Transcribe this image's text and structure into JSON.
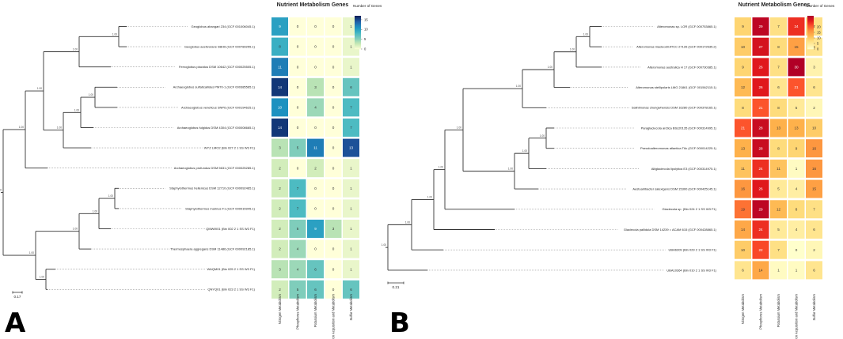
{
  "figure": {
    "heatmap_title": "Nutrient Metabolism Genes",
    "legend_title": "Number of Genes",
    "columns": [
      "Nitrogen Metabolism",
      "Phosphorus Metabolism",
      "Potassium Metabolism",
      "Iron Acquisition and Metabolism",
      "Sulfur Metabolism"
    ]
  },
  "chart_data": [
    {
      "type": "heatmap",
      "panel": "A",
      "title": "Nutrient Metabolism Genes",
      "legend_title": "Number of Genes",
      "legend_ticks": [
        0,
        5,
        10,
        15
      ],
      "color_scale": [
        "#ffffd9",
        "#c7e9b4",
        "#7fcdbb",
        "#41b6c4",
        "#1d91c0",
        "#225ea8",
        "#081d58"
      ],
      "vmax": 15,
      "scale_bar_label": "0.17",
      "columns": [
        "Nitrogen Metabolism",
        "Phosphorus Metabolism",
        "Potassium Metabolism",
        "Iron Acquisition and Metabolism",
        "Sulfur Metabolism"
      ],
      "rows": [
        {
          "label": "Geoglobus ahangari 234 (GCF 001006045.1)",
          "values": [
            9,
            0,
            0,
            0,
            1
          ]
        },
        {
          "label": "Geoglobus acetivorans SBH6 (GCF 000789255.1)",
          "values": [
            8,
            0,
            0,
            0,
            1
          ]
        },
        {
          "label": "Ferroglobus placidus DSM 10642 (GCF 000025505.1)",
          "values": [
            11,
            0,
            0,
            0,
            1
          ]
        },
        {
          "label": "Archaeoglobus sulfaticallidus PM70-1 (GCF 000385565.1)",
          "values": [
            14,
            0,
            3,
            0,
            6
          ]
        },
        {
          "label": "Archaeoglobus veneficus SNP6 (GCF 000194625.1)",
          "values": [
            10,
            0,
            4,
            0,
            7
          ]
        },
        {
          "label": "Archaeoglobus fulgidus DSM 4304 (GCF 000008665.1)",
          "values": [
            14,
            0,
            0,
            0,
            7
          ]
        },
        {
          "label": "WYZ LMO2 (Bin 027 2 1 SS W3 F1)",
          "values": [
            3,
            5,
            11,
            0,
            13
          ]
        },
        {
          "label": "Archaeoglobus profundus DSM 5631 (GCF 000025285.1)",
          "values": [
            2,
            0,
            2,
            0,
            1
          ]
        },
        {
          "label": "Staphylothermus hellenicus DSM 12710 (GCF 000092465.1)",
          "values": [
            2,
            7,
            0,
            0,
            1
          ]
        },
        {
          "label": "Staphylothermus marinus F1 (GCF 000015945.1)",
          "values": [
            2,
            7,
            0,
            0,
            1
          ]
        },
        {
          "label": "QMWW01 (Bin 002 2 1 SS W3 F1)",
          "values": [
            2,
            5,
            9,
            3,
            1
          ]
        },
        {
          "label": "Thermosphaera aggregans DSM 11486 (GCF 000092185.1)",
          "values": [
            2,
            4,
            0,
            0,
            1
          ]
        },
        {
          "label": "WAQM01 (Bin 025 2 1 SS W3 F1)",
          "values": [
            3,
            4,
            6,
            0,
            1
          ]
        },
        {
          "label": "QNYQ01 (Bin 023 2 1 SS W3 F1)",
          "values": [
            2,
            5,
            6,
            0,
            6
          ]
        }
      ],
      "node_supports": [
        "1.00",
        "1.00",
        "1.00",
        "1.00",
        "1.00",
        "1.00",
        "1.00",
        "1.00",
        "1.00",
        "1.00",
        "1.00",
        "1.00",
        "1.00"
      ]
    },
    {
      "type": "heatmap",
      "panel": "B",
      "title": "Nutrient Metabolism Genes",
      "legend_title": "Number of Genes",
      "legend_ticks": [
        0,
        5,
        10,
        15,
        20
      ],
      "color_scale": [
        "#ffffcc",
        "#ffeda0",
        "#fed976",
        "#feb24c",
        "#fd8d3c",
        "#fc4e2a",
        "#e31a1c",
        "#b10026"
      ],
      "vmax": 30,
      "scale_bar_label": "0.21",
      "columns": [
        "Nitrogen Metabolism",
        "Phosphorus Metabolism",
        "Potassium Metabolism",
        "Iron Acquisition and Metabolism",
        "Sulfur Metabolism"
      ],
      "rows": [
        {
          "label": "Alteromonas sp. LOR (GCF 000753865.1)",
          "values": [
            9,
            29,
            7,
            24,
            7
          ]
        },
        {
          "label": "Alteromonas macleodii ATCC 27126 (GCF 000172635.2)",
          "values": [
            10,
            27,
            8,
            15,
            6
          ]
        },
        {
          "label": "Alteromonas australica H 17 (GCF 000730385.1)",
          "values": [
            9,
            26,
            7,
            30,
            3
          ]
        },
        {
          "label": "Alteromonas stellipolaris LMG 21861 (GCF 001562115.1)",
          "values": [
            12,
            26,
            6,
            21,
            6
          ]
        },
        {
          "label": "Salinimonas chungwhensis DSM 16280 (GCF 000378165.1)",
          "values": [
            8,
            21,
            8,
            5,
            2
          ]
        },
        {
          "label": "Paraglaciecola arctica BSs20135 (GCF 000314995.1)",
          "values": [
            21,
            28,
            13,
            13,
            10
          ]
        },
        {
          "label": "Pseudoalteromonas atlantica T6c (GCF 000014225.1)",
          "values": [
            13,
            28,
            8,
            9,
            16
          ]
        },
        {
          "label": "Aliiglaciecola lipolytica E3 (GCF 000314975.1)",
          "values": [
            11,
            24,
            11,
            1,
            16
          ]
        },
        {
          "label": "Aestuariibacter salexigens DSM 15300 (GCF 000425145.1)",
          "values": [
            16,
            26,
            5,
            4,
            15
          ]
        },
        {
          "label": "Glaciecola sp. (Bin 024 2 1 SS W3 F1)",
          "values": [
            19,
            29,
            12,
            8,
            7
          ]
        },
        {
          "label": "Glaciecola pallidula DSM 14239 = ACAM 615 (GCF 000428865.1)",
          "values": [
            14,
            24,
            5,
            4,
            6
          ]
        },
        {
          "label": "UBA6309 (Bin 029 2 1 SS W3 F1)",
          "values": [
            10,
            22,
            7,
            0,
            2
          ]
        },
        {
          "label": "UBA10364 (Bin 010 2 1 SS W3 F1)",
          "values": [
            6,
            14,
            1,
            1,
            6
          ]
        }
      ],
      "node_supports": [
        "1.00",
        "1.00",
        "1.00",
        "1.00",
        "1.00",
        "1.00",
        "1.00",
        "1.00",
        "1.00",
        "1.00",
        "1.00",
        "1.00"
      ]
    }
  ],
  "panels": [
    {
      "letter": "A"
    },
    {
      "letter": "B"
    }
  ]
}
